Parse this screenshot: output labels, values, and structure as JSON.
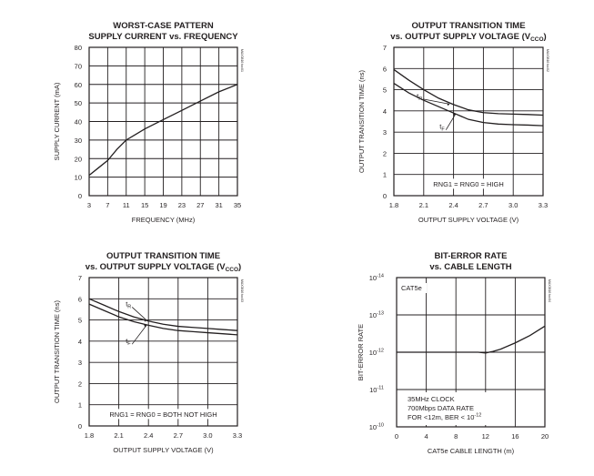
{
  "chart_data": [
    {
      "type": "line",
      "title": "WORST-CASE PATTERN",
      "subtitle": "SUPPLY CURRENT vs. FREQUENCY",
      "code": "MAX3816 toc01",
      "xlabel": "FREQUENCY (MHz)",
      "ylabel": "SUPPLY CURRENT (mA)",
      "xlim": [
        3,
        35
      ],
      "ylim": [
        0,
        80
      ],
      "xticks": [
        3,
        7,
        11,
        15,
        19,
        23,
        27,
        31,
        35
      ],
      "yticks": [
        0,
        10,
        20,
        30,
        40,
        50,
        60,
        70,
        80
      ],
      "series": [
        {
          "x": [
            3,
            5,
            7,
            9,
            11,
            13,
            15,
            19,
            23,
            27,
            31,
            35
          ],
          "y": [
            11,
            15,
            19,
            25,
            30,
            33,
            36,
            41,
            46,
            51,
            56,
            60
          ]
        }
      ],
      "annotations": []
    },
    {
      "type": "line",
      "title": "OUTPUT TRANSITION TIME",
      "subtitle": "vs. OUTPUT SUPPLY VOLTAGE (V",
      "subtitle_sub": "CCO",
      "subtitle_end": ")",
      "code": "MAX3816 toc02",
      "xlabel": "OUTPUT SUPPLY VOLTAGE (V)",
      "ylabel": "OUTPUT TRANSITION TIME (ns)",
      "xlim": [
        1.8,
        3.3
      ],
      "ylim": [
        0,
        7
      ],
      "xticks": [
        1.8,
        2.1,
        2.4,
        2.7,
        3.0,
        3.3
      ],
      "yticks": [
        0,
        1,
        2,
        3,
        4,
        5,
        6,
        7
      ],
      "series": [
        {
          "name": "tR",
          "x": [
            1.8,
            1.95,
            2.1,
            2.25,
            2.4,
            2.55,
            2.7,
            2.85,
            3.0,
            3.15,
            3.3
          ],
          "y": [
            5.95,
            5.45,
            5.0,
            4.6,
            4.3,
            4.05,
            3.92,
            3.87,
            3.85,
            3.83,
            3.8
          ]
        },
        {
          "name": "tF",
          "x": [
            1.8,
            1.95,
            2.1,
            2.25,
            2.4,
            2.55,
            2.7,
            2.85,
            3.0,
            3.15,
            3.3
          ],
          "y": [
            5.3,
            4.85,
            4.5,
            4.2,
            3.9,
            3.6,
            3.45,
            3.38,
            3.35,
            3.33,
            3.3
          ]
        }
      ],
      "annotations": [
        "RNG1 = RNG0 = HIGH"
      ]
    },
    {
      "type": "line",
      "title": "OUTPUT TRANSITION TIME",
      "subtitle": "vs. OUTPUT SUPPLY VOLTAGE (V",
      "subtitle_sub": "CCO",
      "subtitle_end": ")",
      "code": "MAX3816 toc03",
      "xlabel": "OUTPUT SUPPLY VOLTAGE (V)",
      "ylabel": "OUTPUT TRANSITION TIME (ns)",
      "xlim": [
        1.8,
        3.3
      ],
      "ylim": [
        0,
        7
      ],
      "xticks": [
        1.8,
        2.1,
        2.4,
        2.7,
        3.0,
        3.3
      ],
      "yticks": [
        0,
        1,
        2,
        3,
        4,
        5,
        6,
        7
      ],
      "series": [
        {
          "name": "tR",
          "x": [
            1.8,
            1.95,
            2.1,
            2.25,
            2.4,
            2.55,
            2.7,
            2.85,
            3.0,
            3.15,
            3.3
          ],
          "y": [
            6.0,
            5.7,
            5.4,
            5.15,
            4.95,
            4.8,
            4.7,
            4.65,
            4.6,
            4.55,
            4.5
          ]
        },
        {
          "name": "tF",
          "x": [
            1.8,
            1.95,
            2.1,
            2.25,
            2.4,
            2.55,
            2.7,
            2.85,
            3.0,
            3.15,
            3.3
          ],
          "y": [
            5.75,
            5.45,
            5.15,
            4.92,
            4.75,
            4.6,
            4.5,
            4.45,
            4.4,
            4.35,
            4.3
          ]
        }
      ],
      "annotations": [
        "RNG1 = RNG0 = BOTH NOT HIGH"
      ]
    },
    {
      "type": "line",
      "title": "BIT-ERROR RATE",
      "subtitle": "vs. CABLE LENGTH",
      "code": "MAX3816 toc04",
      "xlabel": "CAT5e CABLE LENGTH (m)",
      "ylabel": "BIT-ERROR RATE",
      "yscale": "log",
      "xlim": [
        0,
        20
      ],
      "ylim_exp": [
        -10,
        -14
      ],
      "xticks": [
        0,
        4,
        8,
        12,
        16,
        20
      ],
      "yticks_exp": [
        -14,
        -13,
        -12,
        -11,
        -10
      ],
      "ytick_base": "10",
      "series": [
        {
          "x": [
            0,
            4,
            8,
            11,
            12,
            13,
            14,
            16,
            18,
            20
          ],
          "y_exp": [
            -12,
            -12,
            -12,
            -12,
            -11.98,
            -12.02,
            -12.08,
            -12.25,
            -12.45,
            -12.7
          ]
        }
      ],
      "annotations": [
        "CAT5e"
      ],
      "note": [
        "35MHz CLOCK",
        "700Mbps DATA RATE",
        "FOR <12m, BER < 10"
      ],
      "note_sup": "-12"
    }
  ]
}
